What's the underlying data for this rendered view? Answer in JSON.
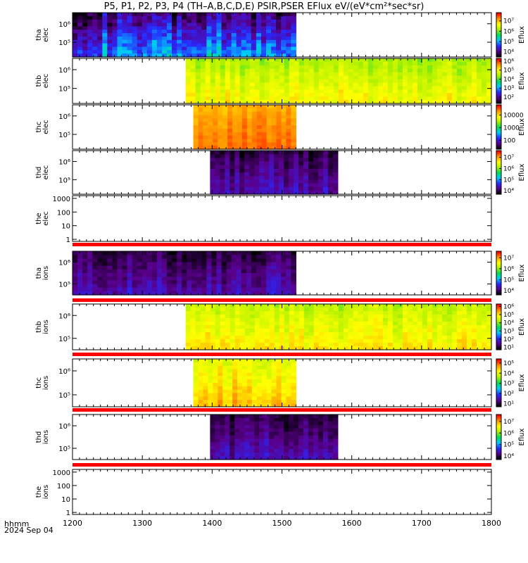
{
  "title": "P5, P1, P2, P3, P4 (TH–A,B,C,D,E) PSIR,PSER EFlux eV/(eV*cm²*sec*sr)",
  "footer": {
    "hhmm": "hhmm",
    "date": "2024 Sep 04"
  },
  "chart_data": {
    "type": "heatmap",
    "title": "P5, P1, P2, P3, P4 (TH–A,B,C,D,E) PSIR,PSER EFlux eV/(eV*cm²*sec*sr)",
    "xlabel": "hhmm",
    "x_ticks": [
      "1200",
      "1300",
      "1400",
      "1500",
      "1600",
      "1700",
      "1800"
    ],
    "x_tick_values": [
      1200,
      1300,
      1400,
      1500,
      1600,
      1700,
      1800
    ],
    "xlim": [
      1200,
      1800
    ],
    "colormap": "rainbow",
    "grid": false,
    "panels": [
      {
        "label": [
          "tha",
          "elec"
        ],
        "y_ticks": [
          "10⁵",
          "10⁶"
        ],
        "y_tick_values": [
          5,
          6
        ],
        "ylim_log10": [
          4.2,
          6.6
        ],
        "coverage": [
          1200,
          1520
        ],
        "level": 0.22,
        "variability": 0.2,
        "colorbar": {
          "label": "Eflux",
          "ticks": [
            "10⁴",
            "10⁵",
            "10⁶",
            "10⁷"
          ],
          "tick_values": [
            4,
            5,
            6,
            7
          ],
          "range_log10": [
            3.5,
            7.8
          ]
        }
      },
      {
        "label": [
          "thb",
          "elec"
        ],
        "y_ticks": [
          "10⁵",
          "10⁶"
        ],
        "y_tick_values": [
          5,
          6
        ],
        "ylim_log10": [
          4.2,
          6.6
        ],
        "coverage": [
          1362,
          1800
        ],
        "level": 0.7,
        "variability": 0.1,
        "colorbar": {
          "label": "Eflux",
          "ticks": [
            "10²",
            "10³",
            "10⁴",
            "10⁵",
            "10⁶"
          ],
          "tick_values": [
            2,
            3,
            4,
            5,
            6
          ],
          "range_log10": [
            1.3,
            6.3
          ]
        }
      },
      {
        "label": [
          "thc",
          "elec"
        ],
        "y_ticks": [
          "10⁵",
          "10⁶"
        ],
        "y_tick_values": [
          5,
          6
        ],
        "ylim_log10": [
          4.2,
          6.6
        ],
        "coverage": [
          1373,
          1520
        ],
        "level": 0.88,
        "variability": 0.06,
        "colorbar": {
          "label": "Eflux",
          "ticks": [
            "100",
            "1000",
            "10000"
          ],
          "tick_values": [
            2,
            3,
            4
          ],
          "range_log10": [
            1.3,
            4.8
          ]
        }
      },
      {
        "label": [
          "thd",
          "elec"
        ],
        "y_ticks": [
          "10⁵",
          "10⁶"
        ],
        "y_tick_values": [
          5,
          6
        ],
        "ylim_log10": [
          4.2,
          6.6
        ],
        "coverage": [
          1397,
          1580
        ],
        "level": 0.12,
        "variability": 0.1,
        "colorbar": {
          "label": "Eflux",
          "ticks": [
            "10⁴",
            "10⁵",
            "10⁶",
            "10⁷"
          ],
          "tick_values": [
            4,
            5,
            6,
            7
          ],
          "range_log10": [
            3.7,
            7.6
          ]
        }
      },
      {
        "label": [
          "the",
          "elec"
        ],
        "y_ticks": [
          "1",
          "10",
          "100",
          "1000"
        ],
        "y_tick_values": [
          0,
          1,
          2,
          3
        ],
        "ylim_log10": [
          -0.15,
          3.2
        ],
        "coverage": null,
        "level": null,
        "variability": null,
        "colorbar": null
      },
      {
        "label": [
          "tha",
          "ions"
        ],
        "y_ticks": [
          "10⁵",
          "10⁶"
        ],
        "y_tick_values": [
          5,
          6
        ],
        "ylim_log10": [
          4.5,
          6.5
        ],
        "coverage": [
          1200,
          1520
        ],
        "level": 0.12,
        "variability": 0.1,
        "colorbar": {
          "label": "Eflux",
          "ticks": [
            "10⁴",
            "10⁵",
            "10⁶",
            "10⁷"
          ],
          "tick_values": [
            4,
            5,
            6,
            7
          ],
          "range_log10": [
            3.6,
            7.6
          ]
        }
      },
      {
        "label": [
          "thb",
          "ions"
        ],
        "y_ticks": [
          "10⁵",
          "10⁶"
        ],
        "y_tick_values": [
          5,
          6
        ],
        "ylim_log10": [
          4.5,
          6.5
        ],
        "coverage": [
          1362,
          1800
        ],
        "level": 0.72,
        "variability": 0.1,
        "colorbar": {
          "label": "Eflux",
          "ticks": [
            "10¹",
            "10²",
            "10³",
            "10⁴",
            "10⁵",
            "10⁶"
          ],
          "tick_values": [
            1,
            2,
            3,
            4,
            5,
            6
          ],
          "range_log10": [
            0.7,
            6.3
          ]
        }
      },
      {
        "label": [
          "thc",
          "ions"
        ],
        "y_ticks": [
          "10⁵",
          "10⁶"
        ],
        "y_tick_values": [
          5,
          6
        ],
        "ylim_log10": [
          4.5,
          6.5
        ],
        "coverage": [
          1373,
          1520
        ],
        "level": 0.78,
        "variability": 0.1,
        "colorbar": {
          "label": "Eflux",
          "ticks": [
            "10¹",
            "10²",
            "10³",
            "10⁴",
            "10⁵"
          ],
          "tick_values": [
            1,
            2,
            3,
            4,
            5
          ],
          "range_log10": [
            0.7,
            5.4
          ]
        }
      },
      {
        "label": [
          "thd",
          "ions"
        ],
        "y_ticks": [
          "10⁵",
          "10⁶"
        ],
        "y_tick_values": [
          5,
          6
        ],
        "ylim_log10": [
          4.5,
          6.5
        ],
        "coverage": [
          1397,
          1580
        ],
        "level": 0.12,
        "variability": 0.1,
        "colorbar": {
          "label": "Eflux",
          "ticks": [
            "10⁴",
            "10⁵",
            "10⁶",
            "10⁷"
          ],
          "tick_values": [
            4,
            5,
            6,
            7
          ],
          "range_log10": [
            3.7,
            7.6
          ]
        }
      },
      {
        "label": [
          "the",
          "ions"
        ],
        "y_ticks": [
          "1",
          "10",
          "100",
          "1000"
        ],
        "y_tick_values": [
          0,
          1,
          2,
          3
        ],
        "ylim_log10": [
          -0.15,
          3.2
        ],
        "coverage": null,
        "level": null,
        "variability": null,
        "colorbar": null
      }
    ],
    "status_bars": {
      "color": "#ff0000",
      "after_panels": [
        4,
        5,
        6,
        7,
        8
      ]
    }
  }
}
